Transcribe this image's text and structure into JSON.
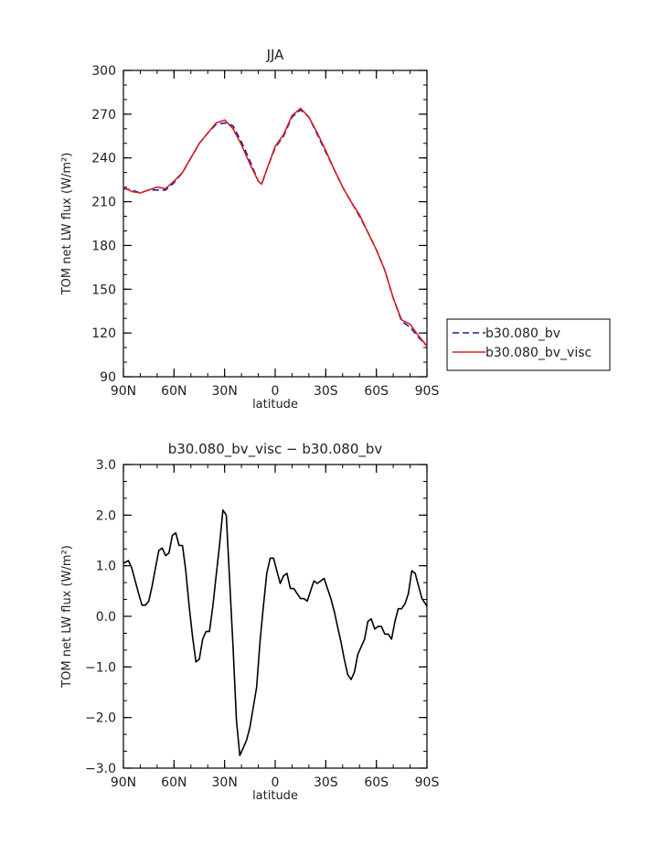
{
  "chart_data": [
    {
      "type": "line",
      "title": "JJA",
      "xlabel": "latitude",
      "ylabel": "TOM net LW flux (W/m²)",
      "xlim": [
        -90,
        90
      ],
      "ylim": [
        90,
        300
      ],
      "xticks": [
        -90,
        -60,
        -30,
        0,
        30,
        60,
        90
      ],
      "xtick_labels": [
        "90N",
        "60N",
        "30N",
        "0",
        "30S",
        "60S",
        "90S"
      ],
      "yticks": [
        90,
        120,
        150,
        180,
        210,
        240,
        270,
        300
      ],
      "ytick_labels": [
        "90",
        "120",
        "150",
        "180",
        "210",
        "240",
        "270",
        "300"
      ],
      "legend_position": "right",
      "series": [
        {
          "name": "b30.080_bv",
          "color": "#1a1aa8",
          "dash": "dashed",
          "x": [
            -90,
            -85,
            -80,
            -75,
            -70,
            -65,
            -60,
            -55,
            -50,
            -45,
            -40,
            -35,
            -30,
            -25,
            -20,
            -15,
            -10,
            -8,
            -5,
            0,
            5,
            10,
            15,
            20,
            25,
            30,
            35,
            40,
            45,
            50,
            55,
            60,
            65,
            70,
            75,
            80,
            85,
            90
          ],
          "y": [
            219,
            218,
            216,
            218,
            218,
            218,
            223,
            230,
            240,
            250,
            257,
            263,
            264,
            262,
            251,
            238,
            224,
            222,
            232,
            247,
            255,
            268,
            273,
            268,
            256,
            244,
            232,
            220,
            210,
            200,
            189,
            177,
            163,
            144,
            128,
            124,
            117,
            111
          ]
        },
        {
          "name": "b30.080_bv_visc",
          "color": "#d42020",
          "dash": "solid",
          "x": [
            -90,
            -85,
            -80,
            -75,
            -70,
            -65,
            -60,
            -55,
            -50,
            -45,
            -40,
            -35,
            -30,
            -25,
            -20,
            -15,
            -10,
            -8,
            -5,
            0,
            5,
            10,
            15,
            20,
            25,
            30,
            35,
            40,
            45,
            50,
            55,
            60,
            65,
            70,
            75,
            80,
            85,
            90
          ],
          "y": [
            220,
            217,
            216,
            218,
            220,
            219,
            224,
            230,
            240,
            250,
            257,
            264,
            266,
            260,
            249,
            236,
            224,
            222,
            232,
            248,
            256,
            269,
            274,
            268,
            257,
            245,
            232,
            220,
            210,
            201,
            189,
            177,
            163,
            144,
            129,
            126,
            118,
            111
          ]
        }
      ]
    },
    {
      "type": "line",
      "title": "b30.080_bv_visc − b30.080_bv",
      "xlabel": "latitude",
      "ylabel": "TOM net LW flux (W/m²)",
      "xlim": [
        -90,
        90
      ],
      "ylim": [
        -3,
        3
      ],
      "xticks": [
        -90,
        -60,
        -30,
        0,
        30,
        60,
        90
      ],
      "xtick_labels": [
        "90N",
        "60N",
        "30N",
        "0",
        "30S",
        "60S",
        "90S"
      ],
      "yticks": [
        -3,
        -2,
        -1,
        0,
        1,
        2,
        3
      ],
      "ytick_labels": [
        "−3.0",
        "−2.0",
        "−1.0",
        "0.0",
        "1.0",
        "2.0",
        "3.0"
      ],
      "series": [
        {
          "color": "#000000",
          "dash": "solid",
          "x": [
            -90,
            -87,
            -85,
            -83,
            -81,
            -79,
            -77,
            -75,
            -73,
            -71,
            -69,
            -67,
            -65,
            -63,
            -61,
            -59,
            -57,
            -55,
            -53,
            -51,
            -49,
            -47,
            -45,
            -43,
            -41,
            -39,
            -37,
            -35,
            -33,
            -31,
            -29,
            -27,
            -25,
            -23,
            -21,
            -19,
            -17,
            -15,
            -13,
            -11,
            -9,
            -7,
            -5,
            -3,
            -1,
            1,
            3,
            5,
            7,
            9,
            11,
            13,
            15,
            17,
            19,
            21,
            23,
            25,
            27,
            29,
            31,
            33,
            35,
            37,
            39,
            41,
            43,
            45,
            47,
            49,
            51,
            53,
            55,
            57,
            59,
            61,
            63,
            65,
            67,
            69,
            71,
            73,
            75,
            77,
            79,
            81,
            83,
            85,
            87,
            89,
            90
          ],
          "y": [
            1.05,
            1.1,
            0.95,
            0.7,
            0.45,
            0.22,
            0.22,
            0.3,
            0.6,
            0.95,
            1.3,
            1.35,
            1.2,
            1.25,
            1.6,
            1.65,
            1.4,
            1.4,
            0.9,
            0.2,
            -0.4,
            -0.9,
            -0.85,
            -0.45,
            -0.3,
            -0.3,
            0.2,
            0.8,
            1.4,
            2.1,
            2.0,
            0.7,
            -0.6,
            -2.05,
            -2.75,
            -2.6,
            -2.45,
            -2.2,
            -1.8,
            -1.4,
            -0.5,
            0.2,
            0.85,
            1.15,
            1.15,
            0.9,
            0.65,
            0.8,
            0.85,
            0.55,
            0.55,
            0.45,
            0.35,
            0.35,
            0.3,
            0.5,
            0.7,
            0.65,
            0.7,
            0.75,
            0.55,
            0.35,
            0.1,
            -0.2,
            -0.5,
            -0.85,
            -1.15,
            -1.25,
            -1.1,
            -0.75,
            -0.6,
            -0.45,
            -0.1,
            -0.05,
            -0.25,
            -0.2,
            -0.2,
            -0.35,
            -0.35,
            -0.45,
            -0.1,
            0.15,
            0.15,
            0.25,
            0.45,
            0.9,
            0.85,
            0.6,
            0.35,
            0.25,
            0.2
          ]
        }
      ]
    }
  ]
}
